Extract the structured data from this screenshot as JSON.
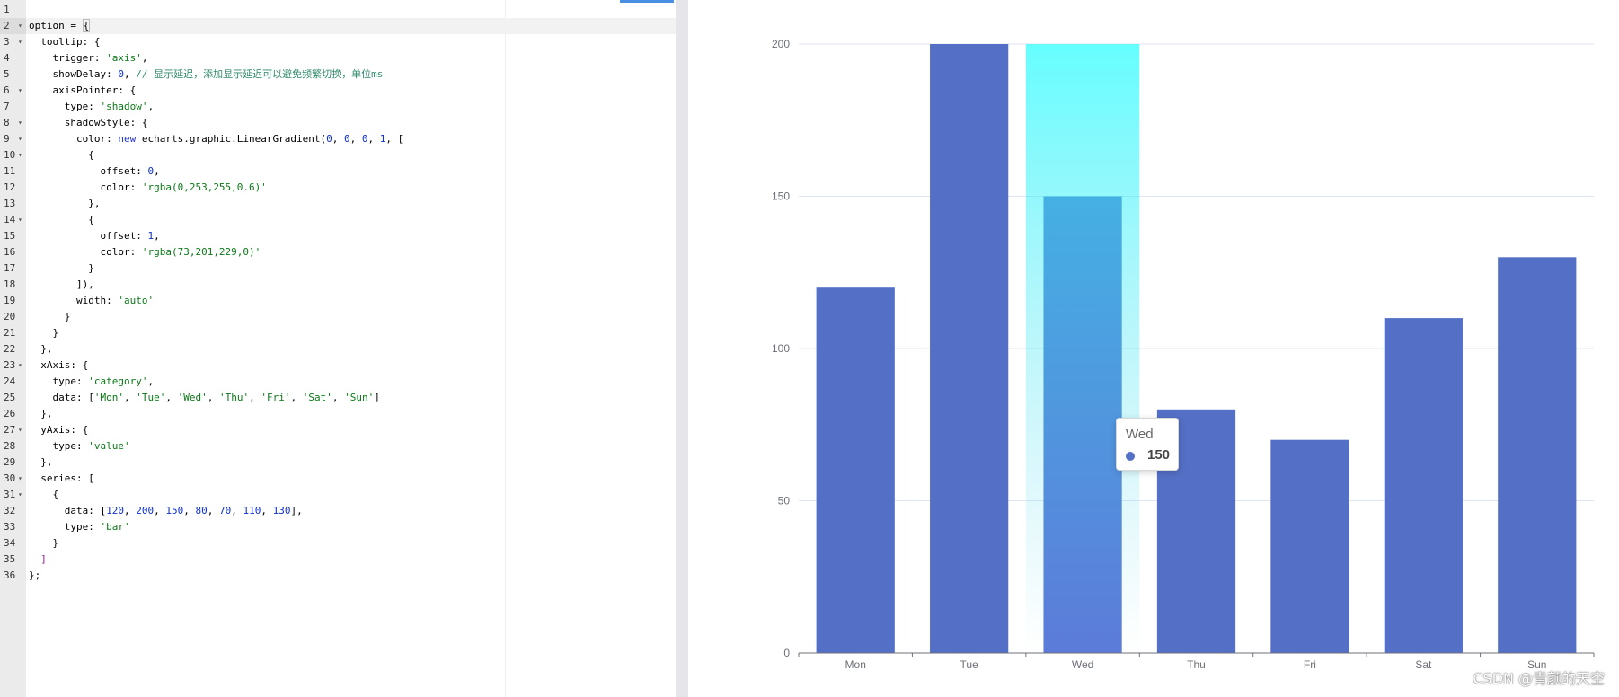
{
  "editor": {
    "lines": [
      {
        "n": "1",
        "fold": false,
        "tokens": []
      },
      {
        "n": "2",
        "fold": true,
        "active": true,
        "tokens": [
          [
            "t",
            "option = "
          ],
          [
            "box",
            "{"
          ]
        ]
      },
      {
        "n": "3",
        "fold": true,
        "tokens": [
          [
            "t",
            "  tooltip: {"
          ]
        ]
      },
      {
        "n": "4",
        "fold": false,
        "tokens": [
          [
            "t",
            "    trigger: "
          ],
          [
            "s",
            "'axis'"
          ],
          [
            "t",
            ","
          ]
        ]
      },
      {
        "n": "5",
        "fold": false,
        "tokens": [
          [
            "t",
            "    showDelay: "
          ],
          [
            "n",
            "0"
          ],
          [
            "t",
            ", "
          ],
          [
            "c",
            "// 显示延迟，添加显示延迟可以避免频繁切换，单位ms"
          ]
        ]
      },
      {
        "n": "6",
        "fold": true,
        "tokens": [
          [
            "t",
            "    axisPointer: {"
          ]
        ]
      },
      {
        "n": "7",
        "fold": false,
        "tokens": [
          [
            "t",
            "      type: "
          ],
          [
            "s",
            "'shadow'"
          ],
          [
            "t",
            ","
          ]
        ]
      },
      {
        "n": "8",
        "fold": true,
        "tokens": [
          [
            "t",
            "      shadowStyle: {"
          ]
        ]
      },
      {
        "n": "9",
        "fold": true,
        "tokens": [
          [
            "t",
            "        color: "
          ],
          [
            "k",
            "new"
          ],
          [
            "t",
            " echarts.graphic.LinearGradient("
          ],
          [
            "n",
            "0"
          ],
          [
            "t",
            ", "
          ],
          [
            "n",
            "0"
          ],
          [
            "t",
            ", "
          ],
          [
            "n",
            "0"
          ],
          [
            "t",
            ", "
          ],
          [
            "n",
            "1"
          ],
          [
            "t",
            ", ["
          ]
        ]
      },
      {
        "n": "10",
        "fold": true,
        "tokens": [
          [
            "t",
            "          {"
          ]
        ]
      },
      {
        "n": "11",
        "fold": false,
        "tokens": [
          [
            "t",
            "            offset: "
          ],
          [
            "n",
            "0"
          ],
          [
            "t",
            ","
          ]
        ]
      },
      {
        "n": "12",
        "fold": false,
        "tokens": [
          [
            "t",
            "            color: "
          ],
          [
            "s",
            "'rgba(0,253,255,0.6)'"
          ]
        ]
      },
      {
        "n": "13",
        "fold": false,
        "tokens": [
          [
            "t",
            "          },"
          ]
        ]
      },
      {
        "n": "14",
        "fold": true,
        "tokens": [
          [
            "t",
            "          {"
          ]
        ]
      },
      {
        "n": "15",
        "fold": false,
        "tokens": [
          [
            "t",
            "            offset: "
          ],
          [
            "n",
            "1"
          ],
          [
            "t",
            ","
          ]
        ]
      },
      {
        "n": "16",
        "fold": false,
        "tokens": [
          [
            "t",
            "            color: "
          ],
          [
            "s",
            "'rgba(73,201,229,0)'"
          ]
        ]
      },
      {
        "n": "17",
        "fold": false,
        "tokens": [
          [
            "t",
            "          }"
          ]
        ]
      },
      {
        "n": "18",
        "fold": false,
        "tokens": [
          [
            "t",
            "        ]),"
          ]
        ]
      },
      {
        "n": "19",
        "fold": false,
        "tokens": [
          [
            "t",
            "        width: "
          ],
          [
            "s",
            "'auto'"
          ]
        ]
      },
      {
        "n": "20",
        "fold": false,
        "tokens": [
          [
            "t",
            "      }"
          ]
        ]
      },
      {
        "n": "21",
        "fold": false,
        "tokens": [
          [
            "t",
            "    }"
          ]
        ]
      },
      {
        "n": "22",
        "fold": false,
        "tokens": [
          [
            "t",
            "  },"
          ]
        ]
      },
      {
        "n": "23",
        "fold": true,
        "tokens": [
          [
            "t",
            "  xAxis: {"
          ]
        ]
      },
      {
        "n": "24",
        "fold": false,
        "tokens": [
          [
            "t",
            "    type: "
          ],
          [
            "s",
            "'category'"
          ],
          [
            "t",
            ","
          ]
        ]
      },
      {
        "n": "25",
        "fold": false,
        "tokens": [
          [
            "t",
            "    data: ["
          ],
          [
            "s",
            "'Mon'"
          ],
          [
            "t",
            ", "
          ],
          [
            "s",
            "'Tue'"
          ],
          [
            "t",
            ", "
          ],
          [
            "s",
            "'Wed'"
          ],
          [
            "t",
            ", "
          ],
          [
            "s",
            "'Thu'"
          ],
          [
            "t",
            ", "
          ],
          [
            "s",
            "'Fri'"
          ],
          [
            "t",
            ", "
          ],
          [
            "s",
            "'Sat'"
          ],
          [
            "t",
            ", "
          ],
          [
            "s",
            "'Sun'"
          ],
          [
            "t",
            "]"
          ]
        ]
      },
      {
        "n": "26",
        "fold": false,
        "tokens": [
          [
            "t",
            "  },"
          ]
        ]
      },
      {
        "n": "27",
        "fold": true,
        "tokens": [
          [
            "t",
            "  yAxis: {"
          ]
        ]
      },
      {
        "n": "28",
        "fold": false,
        "tokens": [
          [
            "t",
            "    type: "
          ],
          [
            "s",
            "'value'"
          ]
        ]
      },
      {
        "n": "29",
        "fold": false,
        "tokens": [
          [
            "t",
            "  },"
          ]
        ]
      },
      {
        "n": "30",
        "fold": true,
        "tokens": [
          [
            "t",
            "  series: ["
          ]
        ]
      },
      {
        "n": "31",
        "fold": true,
        "tokens": [
          [
            "t",
            "    {"
          ]
        ]
      },
      {
        "n": "32",
        "fold": false,
        "tokens": [
          [
            "t",
            "      data: ["
          ],
          [
            "n",
            "120"
          ],
          [
            "t",
            ", "
          ],
          [
            "n",
            "200"
          ],
          [
            "t",
            ", "
          ],
          [
            "n",
            "150"
          ],
          [
            "t",
            ", "
          ],
          [
            "n",
            "80"
          ],
          [
            "t",
            ", "
          ],
          [
            "n",
            "70"
          ],
          [
            "t",
            ", "
          ],
          [
            "n",
            "110"
          ],
          [
            "t",
            ", "
          ],
          [
            "n",
            "130"
          ],
          [
            "t",
            "],"
          ]
        ]
      },
      {
        "n": "33",
        "fold": false,
        "tokens": [
          [
            "t",
            "      type: "
          ],
          [
            "s",
            "'bar'"
          ]
        ]
      },
      {
        "n": "34",
        "fold": false,
        "tokens": [
          [
            "t",
            "    }"
          ]
        ]
      },
      {
        "n": "35",
        "fold": false,
        "tokens": [
          [
            "b",
            "  ]"
          ]
        ]
      },
      {
        "n": "36",
        "fold": false,
        "tokens": [
          [
            "t",
            "};"
          ]
        ]
      }
    ]
  },
  "chart_data": {
    "type": "bar",
    "categories": [
      "Mon",
      "Tue",
      "Wed",
      "Thu",
      "Fri",
      "Sat",
      "Sun"
    ],
    "values": [
      120,
      200,
      150,
      80,
      70,
      110,
      130
    ],
    "yticks": [
      0,
      50,
      100,
      150,
      200
    ],
    "ylim": [
      0,
      200
    ],
    "grid": true,
    "bar_color": "#5470c6",
    "highlight_index": 2,
    "shadow_gradient": [
      "rgba(0,253,255,0.6)",
      "rgba(73,201,229,0)"
    ]
  },
  "tooltip": {
    "title": "Wed",
    "value": "150",
    "marker_color": "#5470c6"
  },
  "watermark": "CSDN @青颜的天空"
}
